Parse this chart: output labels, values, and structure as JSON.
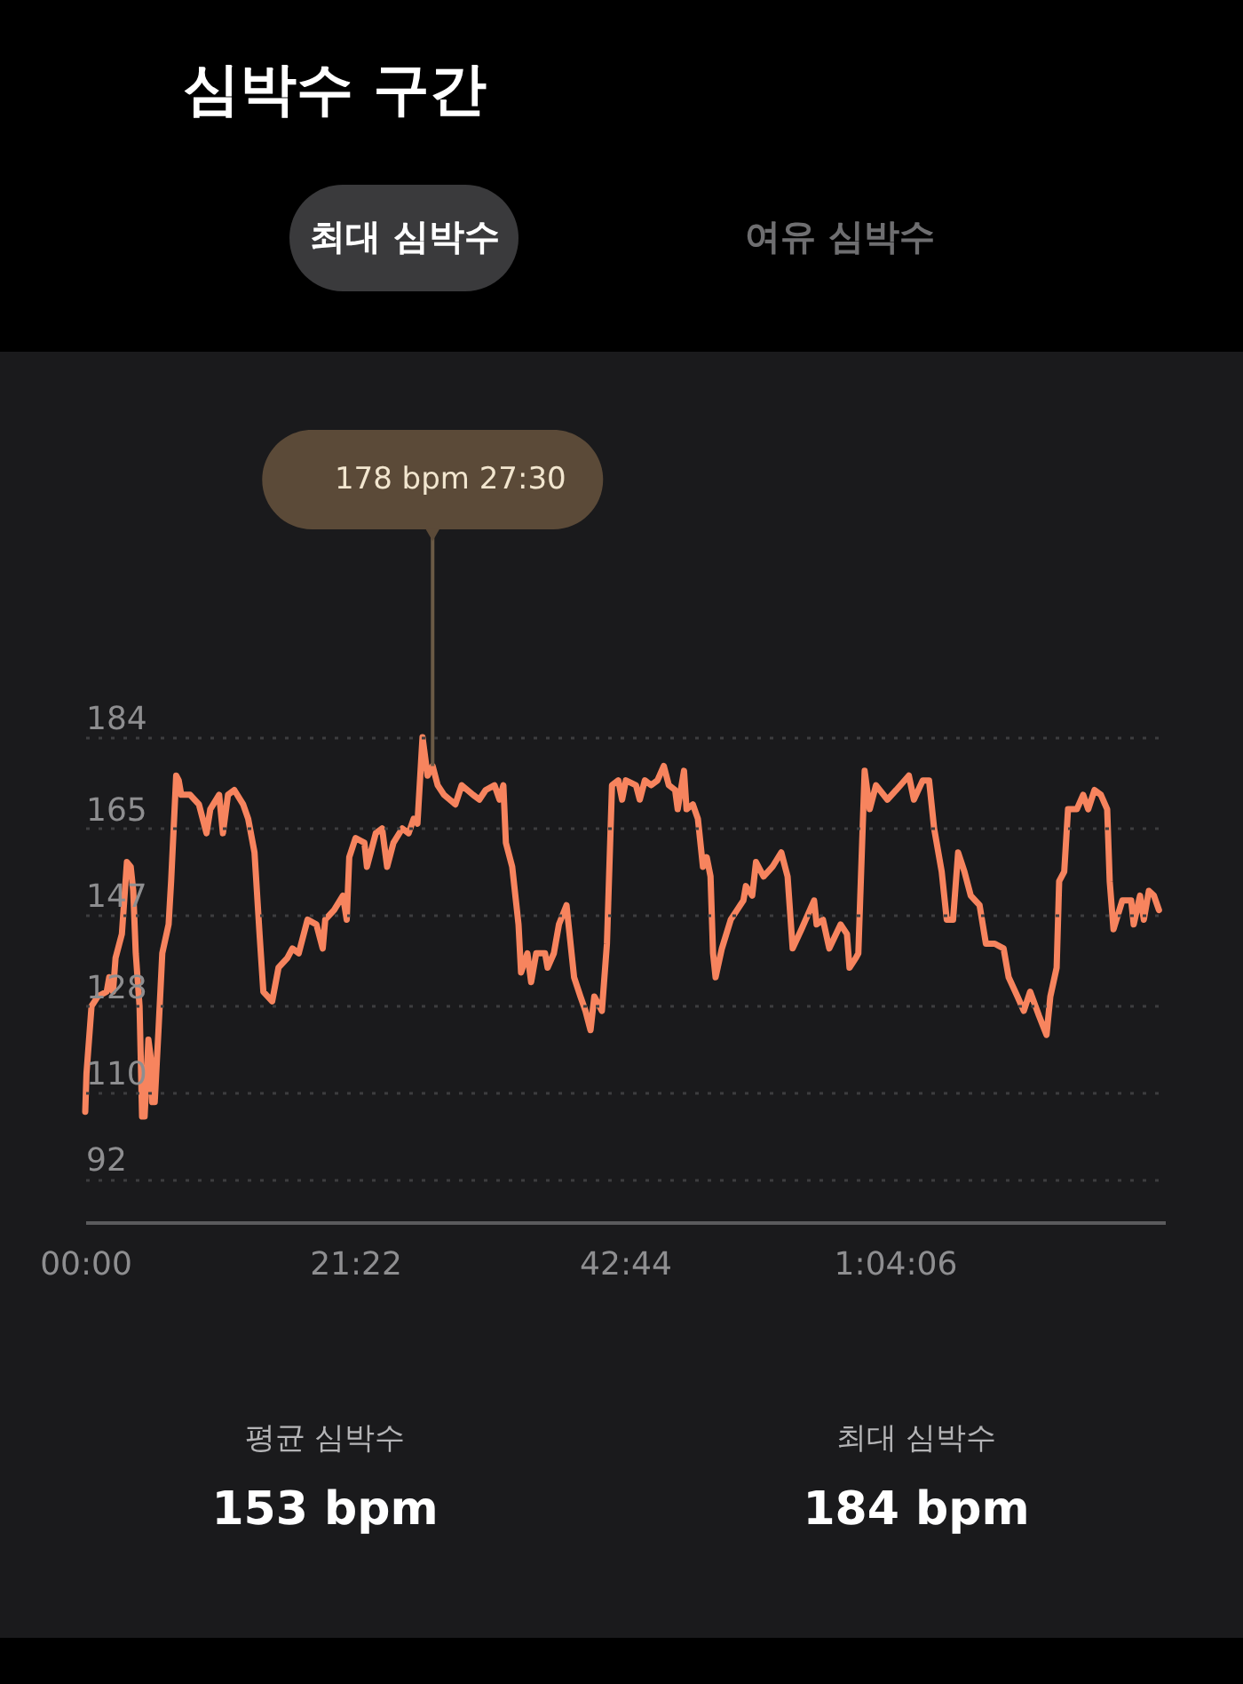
{
  "chart_data": {
    "type": "line",
    "title": "심박수 구간",
    "x": [
      0.0,
      0.1,
      0.5,
      1.0,
      1.7,
      1.9,
      2.2,
      2.4,
      2.9,
      3.3,
      3.6,
      3.8,
      4.0,
      4.3,
      4.5,
      4.7,
      5.0,
      5.2,
      5.3,
      5.5,
      5.8,
      6.1,
      6.6,
      6.8,
      7.2,
      7.4,
      7.6,
      8.3,
      9.0,
      9.6,
      9.9,
      10.6,
      10.9,
      11.3,
      11.8,
      12.5,
      12.9,
      13.4,
      13.8,
      14.1,
      14.8,
      15.3,
      16.0,
      16.4,
      16.9,
      17.6,
      18.3,
      18.8,
      19.0,
      19.7,
      20.4,
      20.7,
      20.9,
      21.4,
      22.1,
      22.3,
      23.0,
      23.5,
      23.9,
      24.4,
      25.1,
      25.6,
      26.0,
      26.3,
      26.7,
      27.1,
      27.5,
      27.9,
      28.4,
      29.3,
      29.8,
      30.7,
      31.2,
      31.7,
      32.4,
      32.8,
      33.1,
      33.3,
      33.8,
      34.3,
      34.5,
      35.0,
      35.3,
      35.7,
      36.4,
      36.6,
      37.1,
      37.5,
      38.1,
      38.5,
      38.7,
      39.2,
      39.6,
      40.0,
      40.3,
      40.9,
      41.3,
      41.7,
      42.2,
      42.5,
      42.8,
      43.6,
      43.9,
      44.3,
      44.8,
      45.3,
      45.8,
      46.2,
      46.7,
      46.9,
      47.4,
      47.6,
      48.1,
      48.5,
      48.9,
      49.2,
      49.5,
      49.7,
      49.9,
      50.4,
      51.1,
      51.6,
      52.1,
      52.3,
      52.8,
      53.1,
      53.7,
      54.4,
      55.1,
      55.6,
      56.0,
      56.7,
      57.7,
      57.9,
      58.4,
      58.9,
      59.8,
      60.3,
      60.5,
      61.0,
      61.2,
      61.7,
      62.1,
      62.6,
      63.5,
      64.2,
      65.2,
      65.6,
      66.3,
      66.8,
      67.2,
      67.8,
      68.2,
      68.7,
      69.1,
      69.6,
      70.1,
      70.8,
      71.3,
      72.0,
      72.7,
      73.1,
      73.8,
      74.3,
      74.8,
      75.5,
      76.1,
      76.4,
      76.9,
      77.1,
      77.5,
      77.8,
      78.5,
      79.0,
      79.4,
      79.9,
      80.4,
      80.9,
      81.1,
      81.4,
      82.1,
      82.8,
      83.0,
      83.5,
      83.8,
      84.2,
      84.6,
      85.0
    ],
    "series": [
      {
        "color": "#f7845e",
        "values": [
          106,
          114,
          128,
          130,
          131,
          134,
          131,
          138,
          143,
          158,
          157,
          152,
          139,
          128,
          105,
          105,
          121,
          117,
          108,
          108,
          123,
          139,
          145,
          154,
          176,
          175,
          172,
          172,
          170,
          164,
          169,
          172,
          164,
          172,
          173,
          170,
          167,
          160,
          143,
          131,
          129,
          136,
          138,
          140,
          139,
          146,
          145,
          140,
          146,
          148,
          151,
          146,
          159,
          163,
          162,
          157,
          164,
          165,
          157,
          162,
          165,
          164,
          167,
          166,
          184,
          176,
          178,
          174,
          172,
          170,
          174,
          172,
          171,
          173,
          174,
          171,
          174,
          162,
          157,
          145,
          135,
          139,
          133,
          139,
          139,
          136,
          139,
          145,
          149,
          139,
          134,
          130,
          127,
          123,
          130,
          127,
          141,
          174,
          175,
          171,
          175,
          174,
          171,
          175,
          174,
          175,
          178,
          174,
          173,
          169,
          177,
          169,
          170,
          167,
          157,
          159,
          155,
          139,
          134,
          140,
          146,
          148,
          150,
          153,
          151,
          158,
          155,
          157,
          160,
          155,
          140,
          144,
          150,
          145,
          146,
          140,
          145,
          143,
          136,
          138,
          139,
          177,
          169,
          174,
          171,
          173,
          176,
          171,
          175,
          175,
          165,
          156,
          146,
          146,
          160,
          156,
          151,
          149,
          141,
          141,
          140,
          134,
          130,
          127,
          131,
          126,
          122,
          130,
          136,
          154,
          156,
          169,
          169,
          172,
          169,
          173,
          172,
          169,
          154,
          144,
          150,
          150,
          145,
          151,
          146,
          152,
          151,
          148
        ]
      }
    ],
    "xlim": [
      0,
      85.467
    ],
    "xticks": [
      {
        "value": 0,
        "label": "00:00"
      },
      {
        "value": 21.367,
        "label": "21:22"
      },
      {
        "value": 42.733,
        "label": "42:44"
      },
      {
        "value": 64.1,
        "label": "1:04:06"
      }
    ],
    "ylim": [
      83,
      184
    ],
    "yticks": [
      92,
      110,
      128,
      147,
      165,
      184
    ],
    "grid": "y",
    "line_style": "solid",
    "annotations": [
      {
        "text": "178 bpm 27:30",
        "x": 27.5,
        "y": 178
      },
      "최대 심박수",
      "여유 심박수",
      "평균 심박수",
      "153 bpm",
      "최대 심박수",
      "184 bpm"
    ]
  }
}
